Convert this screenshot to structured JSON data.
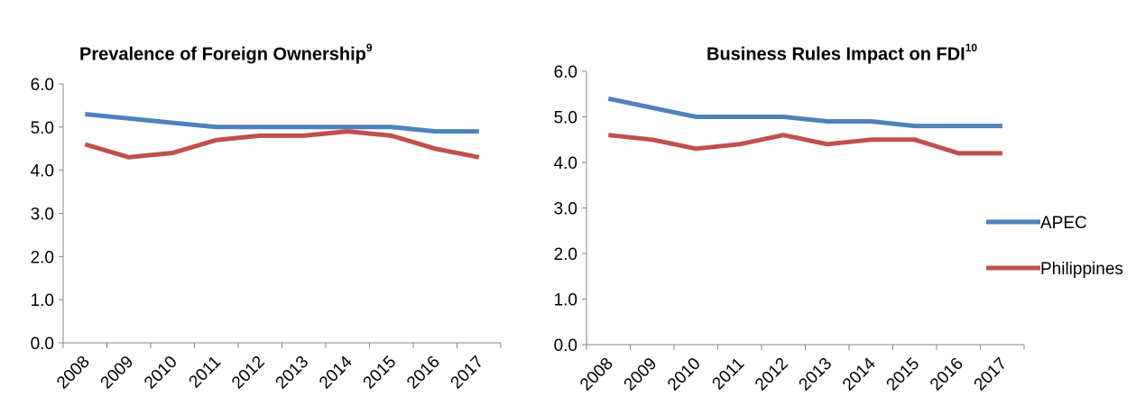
{
  "chart_data": [
    {
      "type": "line",
      "title": "Prevalence of Foreign Ownership",
      "title_sup": "9",
      "x": [
        "2008",
        "2009",
        "2010",
        "2011",
        "2012",
        "2013",
        "2014",
        "2015",
        "2016",
        "2017"
      ],
      "ylim": [
        0,
        6
      ],
      "yticks": [
        "0.0",
        "1.0",
        "2.0",
        "3.0",
        "4.0",
        "5.0",
        "6.0"
      ],
      "grid": false,
      "series": [
        {
          "name": "APEC",
          "color": "#4f81bd",
          "values": [
            5.3,
            5.2,
            5.1,
            5.0,
            5.0,
            5.0,
            5.0,
            5.0,
            4.9,
            4.9
          ]
        },
        {
          "name": "Philippines",
          "color": "#c0504d",
          "values": [
            4.6,
            4.3,
            4.4,
            4.7,
            4.8,
            4.8,
            4.9,
            4.8,
            4.5,
            4.3
          ]
        }
      ]
    },
    {
      "type": "line",
      "title": "Business Rules Impact on FDI",
      "title_sup": "10",
      "x": [
        "2008",
        "2009",
        "2010",
        "2011",
        "2012",
        "2013",
        "2014",
        "2015",
        "2016",
        "2017"
      ],
      "ylim": [
        0,
        6
      ],
      "yticks": [
        "0.0",
        "1.0",
        "2.0",
        "3.0",
        "4.0",
        "5.0",
        "6.0"
      ],
      "grid": false,
      "legend_position": "right",
      "legend": [
        "APEC",
        "Philippines"
      ],
      "series": [
        {
          "name": "APEC",
          "color": "#4f81bd",
          "values": [
            5.4,
            5.2,
            5.0,
            5.0,
            5.0,
            4.9,
            4.9,
            4.8,
            4.8,
            4.8
          ]
        },
        {
          "name": "Philippines",
          "color": "#c0504d",
          "values": [
            4.6,
            4.5,
            4.3,
            4.4,
            4.6,
            4.4,
            4.5,
            4.5,
            4.2,
            4.2
          ]
        }
      ]
    }
  ]
}
